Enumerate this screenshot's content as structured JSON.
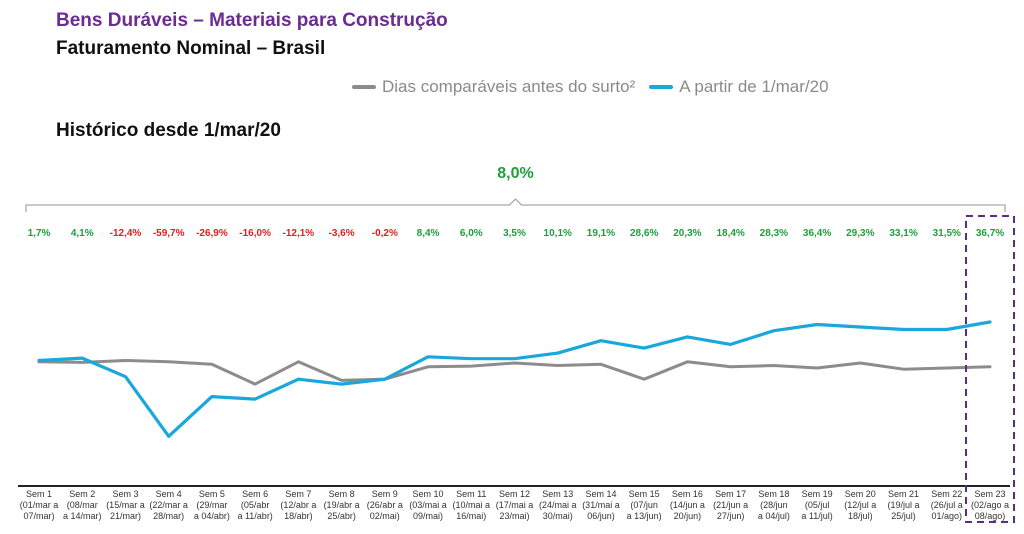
{
  "header": {
    "title": "Bens Duráveis – Materiais para Construção",
    "subtitle": "Faturamento Nominal – Brasil",
    "section": "Histórico desde 1/mar/20"
  },
  "legend": {
    "items": [
      {
        "label": "Dias comparáveis antes do surto²",
        "color": "#8c8c8c"
      },
      {
        "label": "A partir de 1/mar/20",
        "color": "#1aa7dc"
      }
    ]
  },
  "colors": {
    "positive": "#1f9e3c",
    "negative": "#e02020",
    "highlight": "#5b2c83",
    "axis": "#222222",
    "bracket": "#aaaaaa"
  },
  "chart_data": {
    "type": "line",
    "overall_label": "8,0%",
    "categories": [
      [
        "Sem 1",
        "(01/mar a",
        "07/mar)"
      ],
      [
        "Sem 2",
        "(08/mar",
        "a 14/mar)"
      ],
      [
        "Sem 3",
        "(15/mar a",
        "21/mar)"
      ],
      [
        "Sem 4",
        "(22/mar a",
        "28/mar)"
      ],
      [
        "Sem 5",
        "(29/mar",
        "a 04/abr)"
      ],
      [
        "Sem 6",
        "(05/abr",
        "a 11/abr)"
      ],
      [
        "Sem 7",
        "(12/abr a",
        "18/abr)"
      ],
      [
        "Sem 8",
        "(19/abr a",
        "25/abr)"
      ],
      [
        "Sem 9",
        "(26/abr a",
        "02/mai)"
      ],
      [
        "Sem 10",
        "(03/mai a",
        "09/mai)"
      ],
      [
        "Sem 11",
        "(10/mai a",
        "16/mai)"
      ],
      [
        "Sem 12",
        "(17/mai a",
        "23/mai)"
      ],
      [
        "Sem 13",
        "(24/mai a",
        "30/mai)"
      ],
      [
        "Sem 14",
        "(31/mai a",
        "06/jun)"
      ],
      [
        "Sem 15",
        "(07/jun",
        "a 13/jun)"
      ],
      [
        "Sem 16",
        "(14/jun a",
        "20/jun)"
      ],
      [
        "Sem 17",
        "(21/jun a",
        "27/jun)"
      ],
      [
        "Sem 18",
        "(28/jun",
        "a 04/jul)"
      ],
      [
        "Sem 19",
        "(05/jul",
        "a 11/jul)"
      ],
      [
        "Sem 20",
        "(12/jul a",
        "18/jul)"
      ],
      [
        "Sem 21",
        "(19/jul a",
        "25/jul)"
      ],
      [
        "Sem 22",
        "(26/jul a",
        "01/ago)"
      ],
      [
        "Sem 23",
        "(02/ago a",
        "08/ago)"
      ]
    ],
    "labels": [
      "1,7%",
      "4,1%",
      "-12,4%",
      "-59,7%",
      "-26,9%",
      "-16,0%",
      "-12,1%",
      "-3,6%",
      "-0,2%",
      "8,4%",
      "6,0%",
      "3,5%",
      "10,1%",
      "19,1%",
      "28,6%",
      "20,3%",
      "18,4%",
      "28,3%",
      "36,4%",
      "29,3%",
      "33,1%",
      "31,5%",
      "36,7%"
    ],
    "series": [
      {
        "name": "Dias comparáveis antes do surto²",
        "values": [
          100,
          99.5,
          101,
          100,
          98,
          82,
          100,
          85,
          86,
          96,
          96.5,
          99,
          97,
          98,
          86,
          100,
          96,
          97,
          95,
          99,
          94,
          95,
          96
        ]
      },
      {
        "name": "A partir de 1/mar/20",
        "values": [
          101,
          103,
          88,
          40,
          72,
          70,
          86,
          82,
          86,
          104,
          102.5,
          102.5,
          107,
          117,
          111,
          120,
          114,
          125,
          130,
          128,
          126,
          126,
          132
        ]
      }
    ],
    "ylim": [
      0,
      190
    ],
    "highlight_index": 22
  }
}
